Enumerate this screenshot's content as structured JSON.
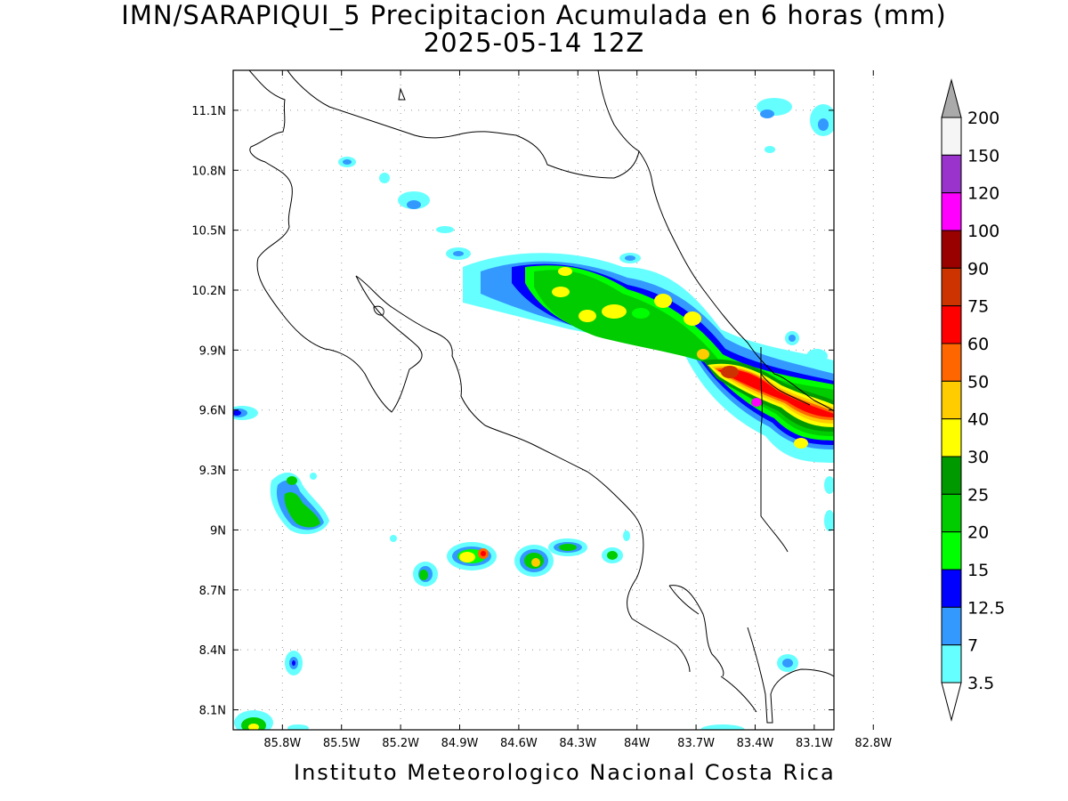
{
  "title": "IMN/SARAPIQUI_5 Precipitacion Acumulada en 6 horas (mm)",
  "subtitle": "2025-05-14 12Z",
  "footer": "Instituto Meteorologico Nacional Costa Rica",
  "map": {
    "lon_range": [
      -86.05,
      -83.0
    ],
    "lat_range": [
      8.0,
      11.3
    ],
    "lon_ticks": [
      {
        "value": -85.8,
        "label": "85.8W"
      },
      {
        "value": -85.5,
        "label": "85.5W"
      },
      {
        "value": -85.2,
        "label": "85.2W"
      },
      {
        "value": -84.9,
        "label": "84.9W"
      },
      {
        "value": -84.6,
        "label": "84.6W"
      },
      {
        "value": -84.3,
        "label": "84.3W"
      },
      {
        "value": -84.0,
        "label": "84W"
      },
      {
        "value": -83.7,
        "label": "83.7W"
      },
      {
        "value": -83.4,
        "label": "83.4W"
      },
      {
        "value": -83.1,
        "label": "83.1W"
      },
      {
        "value": -82.8,
        "label": "82.8W"
      }
    ],
    "lat_ticks": [
      {
        "value": 11.1,
        "label": "11.1N"
      },
      {
        "value": 10.8,
        "label": "10.8N"
      },
      {
        "value": 10.5,
        "label": "10.5N"
      },
      {
        "value": 10.2,
        "label": "10.2N"
      },
      {
        "value": 9.9,
        "label": "9.9N"
      },
      {
        "value": 9.6,
        "label": "9.6N"
      },
      {
        "value": 9.3,
        "label": "9.3N"
      },
      {
        "value": 9.0,
        "label": "9N"
      },
      {
        "value": 8.7,
        "label": "8.7N"
      },
      {
        "value": 8.4,
        "label": "8.4N"
      },
      {
        "value": 8.1,
        "label": "8.1N"
      }
    ],
    "grid": "dotted"
  },
  "legend": {
    "labels": [
      "200",
      "150",
      "120",
      "100",
      "90",
      "75",
      "60",
      "50",
      "40",
      "30",
      "25",
      "20",
      "15",
      "12.5",
      "7",
      "3.5"
    ],
    "colors": [
      "#f5f5f5",
      "#9933cc",
      "#ff00ff",
      "#990000",
      "#cc3300",
      "#ff0000",
      "#ff6600",
      "#ffcc00",
      "#ffff00",
      "#009900",
      "#00cc00",
      "#00ff00",
      "#0000ff",
      "#3399ff",
      "#66ffff"
    ],
    "top_arrow_color": "#aaaaaa",
    "bottom_arrow_color": "#ffffff"
  }
}
